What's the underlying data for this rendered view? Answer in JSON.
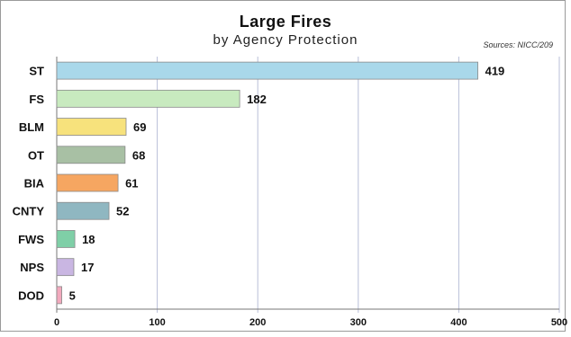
{
  "chart_data": {
    "type": "bar",
    "orientation": "horizontal",
    "title": "Large Fires",
    "subtitle": "by Agency Protection",
    "source": "Sources: NICC/209",
    "categories": [
      "ST",
      "FS",
      "BLM",
      "OT",
      "BIA",
      "CNTY",
      "FWS",
      "NPS",
      "DOD"
    ],
    "values": [
      419,
      182,
      69,
      68,
      61,
      52,
      18,
      17,
      5
    ],
    "colors": [
      "#a9d8ea",
      "#c8eabf",
      "#f7e27c",
      "#a8c0a4",
      "#f6a661",
      "#8fb7c1",
      "#7fcfa7",
      "#c9b6e2",
      "#f2a9bd"
    ],
    "xlim": [
      0,
      500
    ],
    "xticks": [
      0,
      100,
      200,
      300,
      400,
      500
    ],
    "grid": true,
    "xlabel": "",
    "ylabel": ""
  }
}
